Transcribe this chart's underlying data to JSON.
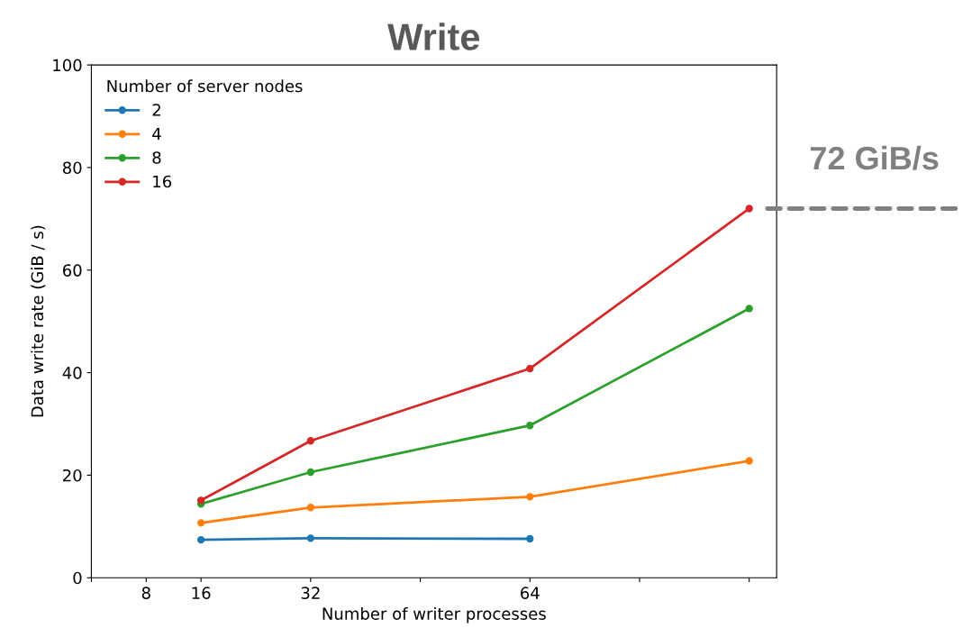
{
  "chart_data": {
    "type": "line",
    "title": "Write",
    "xlabel": "Number of writer processes",
    "ylabel": "Data write rate (GiB / s)",
    "legend_title": "Number of server nodes",
    "xlim": [
      0,
      100
    ],
    "xticks": [
      {
        "value": 0,
        "label": null
      },
      8,
      16,
      32,
      {
        "value": 48,
        "label": null
      },
      64,
      {
        "value": 80,
        "label": null
      },
      {
        "value": 96,
        "label": null
      }
    ],
    "ylim": [
      0,
      100
    ],
    "yticks": [
      0,
      20,
      40,
      60,
      80,
      100
    ],
    "series": [
      {
        "name": "2",
        "color": "#1f77b4",
        "x": [
          16,
          32,
          64
        ],
        "values": [
          7.4,
          7.7,
          7.6
        ]
      },
      {
        "name": "4",
        "color": "#ff7f0e",
        "x": [
          16,
          32,
          64,
          96
        ],
        "values": [
          10.7,
          13.7,
          15.8,
          22.8
        ]
      },
      {
        "name": "8",
        "color": "#2ca02c",
        "x": [
          16,
          32,
          64,
          96
        ],
        "values": [
          14.4,
          20.6,
          29.7,
          52.5
        ]
      },
      {
        "name": "16",
        "color": "#d62728",
        "x": [
          16,
          32,
          64,
          96
        ],
        "values": [
          15.1,
          26.7,
          40.8,
          72.0
        ]
      }
    ],
    "annotations": [
      {
        "text": "72 GiB/s",
        "x": 96,
        "y": 72
      }
    ],
    "marker": "circle",
    "line_style": "solid",
    "legend": "top left",
    "grid": false
  }
}
